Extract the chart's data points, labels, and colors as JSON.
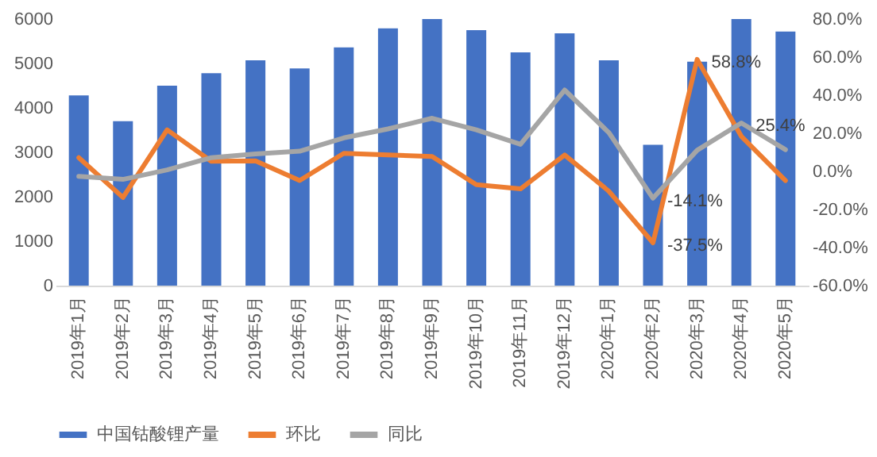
{
  "chart_data": {
    "type": "bar",
    "categories": [
      "2019年1月",
      "2019年2月",
      "2019年3月",
      "2019年4月",
      "2019年5月",
      "2019年6月",
      "2019年7月",
      "2019年8月",
      "2019年9月",
      "2019年10月",
      "2019年11月",
      "2019年12月",
      "2020年1月",
      "2020年2月",
      "2020年3月",
      "2020年4月",
      "2020年5月"
    ],
    "series": [
      {
        "name": "中国钴酸锂产量",
        "color": "#4472c4",
        "values": [
          4280,
          3700,
          4500,
          4780,
          5070,
          4890,
          5360,
          5790,
          6000,
          5750,
          5250,
          5680,
          5070,
          3170,
          5040,
          6000,
          5720
        ]
      },
      {
        "name": "环比",
        "type": "line",
        "axis": "y2",
        "color": "#ed7d31",
        "values": [
          7.2,
          -13.7,
          21.8,
          5.3,
          5.5,
          -4.8,
          9.5,
          8.6,
          7.8,
          -7.0,
          -9.2,
          8.6,
          -10.4,
          -37.5,
          58.8,
          18.4,
          -4.8
        ],
        "value_labels": [
          null,
          null,
          null,
          null,
          null,
          null,
          null,
          null,
          null,
          null,
          null,
          null,
          null,
          "-37.5%",
          "58.8%",
          null,
          null
        ]
      },
      {
        "name": "同比",
        "type": "line",
        "axis": "y2",
        "color": "#a5a5a5",
        "values": [
          -2.6,
          -4.2,
          0.8,
          7.2,
          9.2,
          10.6,
          17.6,
          22.3,
          27.9,
          21.8,
          14.2,
          42.7,
          20.4,
          -14.1,
          11.1,
          25.4,
          11.4
        ],
        "value_labels": [
          null,
          null,
          null,
          null,
          null,
          null,
          null,
          null,
          null,
          null,
          null,
          null,
          null,
          "-14.1%",
          null,
          "25.4%",
          null
        ]
      }
    ],
    "ylim": [
      0,
      6000
    ],
    "yticks": [
      0,
      1000,
      2000,
      3000,
      4000,
      5000,
      6000
    ],
    "y2lim": [
      -60,
      80
    ],
    "y2ticks": [
      {
        "value": -60,
        "label": "-60.0%"
      },
      {
        "value": -40,
        "label": "-40.0%"
      },
      {
        "value": -20,
        "label": "-20.0%"
      },
      {
        "value": 0,
        "label": "0.0%"
      },
      {
        "value": 20,
        "label": "20.0%"
      },
      {
        "value": 40,
        "label": "40.0%"
      },
      {
        "value": 60,
        "label": "60.0%"
      },
      {
        "value": 80,
        "label": "80.0%"
      }
    ],
    "grid": false,
    "legend": "bottom",
    "line_style": "solid",
    "marker": "none"
  }
}
